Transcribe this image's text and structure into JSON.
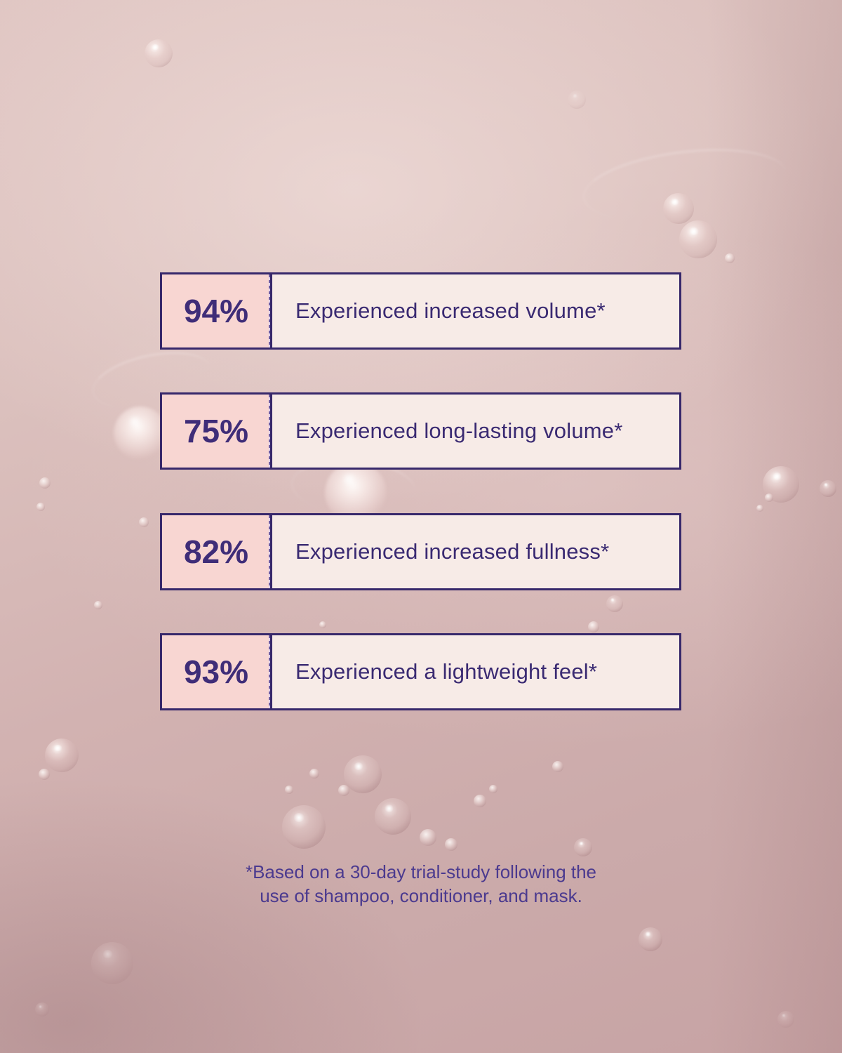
{
  "chart_data": {
    "type": "table",
    "categories": [
      "Experienced increased volume*",
      "Experienced long-lasting volume*",
      "Experienced increased fullness*",
      "Experienced a lightweight feel*"
    ],
    "values": [
      94,
      75,
      82,
      93
    ],
    "unit": "%",
    "title": "",
    "footnote": "*Based on a 30-day trial-study following the use of shampoo, conditioner, and mask."
  },
  "stats": [
    {
      "percent": "94%",
      "label": "Experienced increased volume*"
    },
    {
      "percent": "75%",
      "label": "Experienced long-lasting volume*"
    },
    {
      "percent": "82%",
      "label": "Experienced increased fullness*"
    },
    {
      "percent": "93%",
      "label": "Experienced a lightweight feel*"
    }
  ],
  "footnote": {
    "line1": "*Based on a 30-day trial-study following the",
    "line2": "use of shampoo, conditioner, and mask."
  },
  "colors": {
    "background_base": "#d3b4b2",
    "panel_border": "#37286b",
    "percent_cell_bg": "#f8d6d2",
    "label_cell_bg": "#f7ebe7",
    "percent_text": "#3f2d78",
    "label_text": "#3a2a72",
    "footnote_text": "#4b3a8f"
  }
}
